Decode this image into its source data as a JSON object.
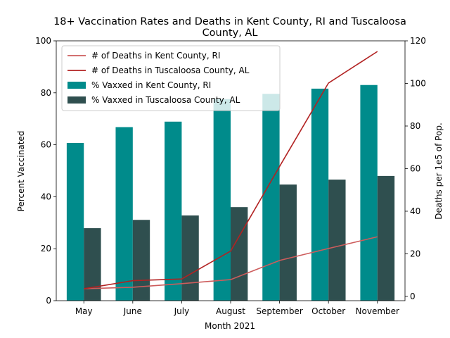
{
  "chart_data": {
    "type": "bar+line",
    "title_lines": [
      "18+ Vaccination Rates and Deaths in Kent County, RI and Tuscaloosa",
      "County, AL"
    ],
    "xlabel": "Month 2021",
    "ylabel": "Percent Vaccinated",
    "y2label": "Deaths per 1e5 of Pop.",
    "categories": [
      "May",
      "June",
      "July",
      "August",
      "September",
      "October",
      "November"
    ],
    "ylim": [
      0,
      100
    ],
    "yticks": [
      0,
      20,
      40,
      60,
      80,
      100
    ],
    "y2lim": [
      -2,
      120
    ],
    "y2ticks": [
      0,
      20,
      40,
      60,
      80,
      100,
      120
    ],
    "bar_series": [
      {
        "name": "% Vaxxed in Kent County, RI",
        "color": "#008b8b",
        "values": [
          60.7,
          66.8,
          68.9,
          77.6,
          79.6,
          81.6,
          83.0
        ]
      },
      {
        "name": "% Vaxxed in Tuscaloosa County, AL",
        "color": "#2f4f4f",
        "values": [
          27.9,
          31.1,
          32.8,
          36.0,
          44.7,
          46.6,
          48.0
        ]
      }
    ],
    "line_series": [
      {
        "name": "# of Deaths in Kent County, RI",
        "color": "#cd5c5c",
        "values": [
          3.6,
          4.3,
          6.0,
          7.9,
          16.9,
          22.5,
          28.0
        ]
      },
      {
        "name": "# of Deaths in Tuscaloosa County, AL",
        "color": "#b22222",
        "values": [
          3.6,
          7.4,
          8.2,
          21.3,
          61.0,
          100.2,
          115.0
        ]
      }
    ],
    "legend_position": "upper-left"
  }
}
